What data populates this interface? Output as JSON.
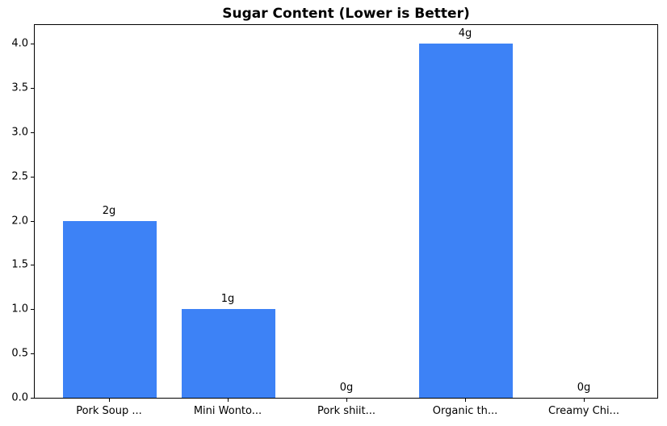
{
  "chart_data": {
    "type": "bar",
    "title": "Sugar Content (Lower is Better)",
    "categories": [
      "Pork Soup ...",
      "Mini Wonto...",
      "Pork shiit...",
      "Organic th...",
      "Creamy Chi..."
    ],
    "values": [
      2,
      1,
      0,
      4,
      0
    ],
    "bar_labels": [
      "2g",
      "1g",
      "0g",
      "4g",
      "0g"
    ],
    "y_tick_values": [
      0.0,
      0.5,
      1.0,
      1.5,
      2.0,
      2.5,
      3.0,
      3.5,
      4.0
    ],
    "y_tick_labels": [
      "0.0",
      "0.5",
      "1.0",
      "1.5",
      "2.0",
      "2.5",
      "3.0",
      "3.5",
      "4.0"
    ],
    "ylim": [
      0,
      4.22
    ],
    "xlabel": "",
    "ylabel": "",
    "grid": false,
    "legend": null,
    "bar_color": "#3d82f6",
    "text_color": "#000000",
    "background_color": "#ffffff"
  }
}
